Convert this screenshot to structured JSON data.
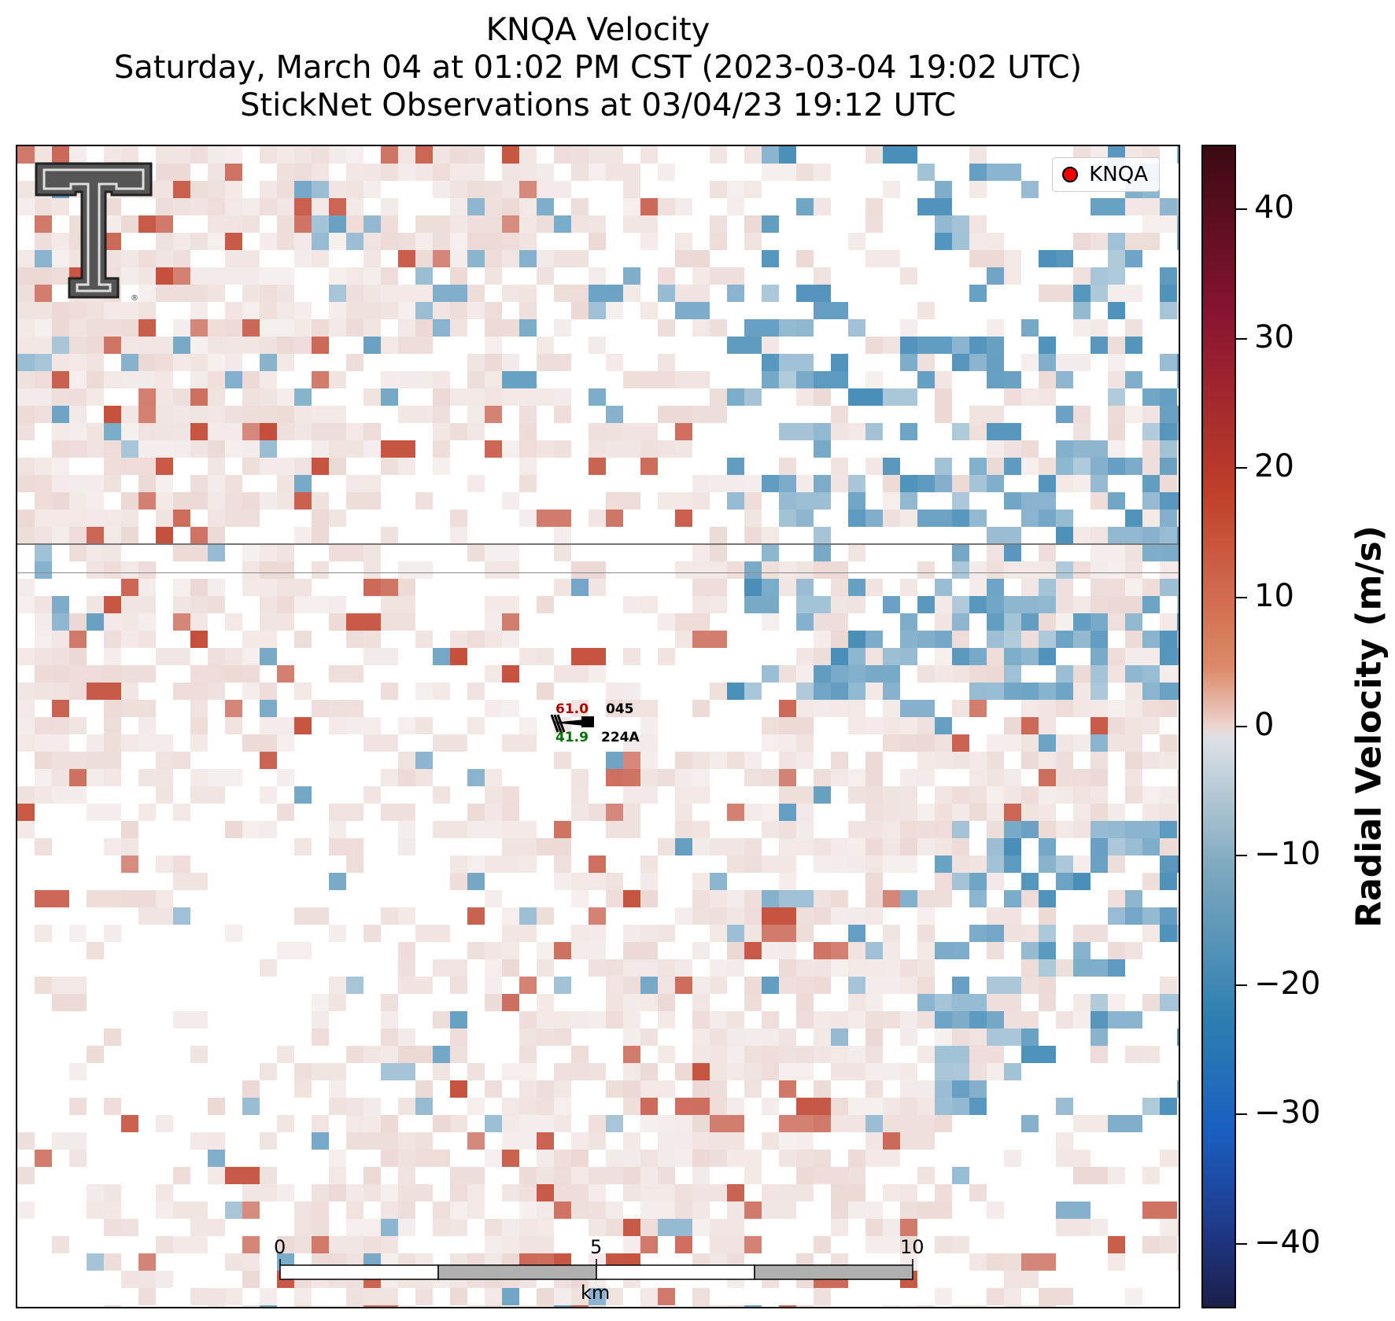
{
  "title": {
    "line1": "KNQA Velocity",
    "line2": "Saturday, March 04 at 01:02 PM CST (2023-03-04 19:02 UTC)",
    "line3": "StickNet Observations at 03/04/23 19:12 UTC"
  },
  "legend": {
    "label": "KNQA"
  },
  "colorbar": {
    "label": "Radial Velocity (m/s)",
    "ticks": [
      "40",
      "30",
      "20",
      "10",
      "0",
      "−10",
      "−20",
      "−30",
      "−40"
    ],
    "range": [
      -45,
      45
    ]
  },
  "station": {
    "temp": "61.0",
    "dewpoint": "41.9",
    "wind_dir": "045",
    "id": "224A"
  },
  "scale_bar": {
    "labels": [
      "0",
      "5",
      "10"
    ],
    "unit": "km"
  },
  "colors": {
    "positive": "#c0402a",
    "negative": "#2e7fb0",
    "near_zero": "#ecd9d5",
    "temp_text": "#b00000",
    "dew_text": "#007000"
  }
}
